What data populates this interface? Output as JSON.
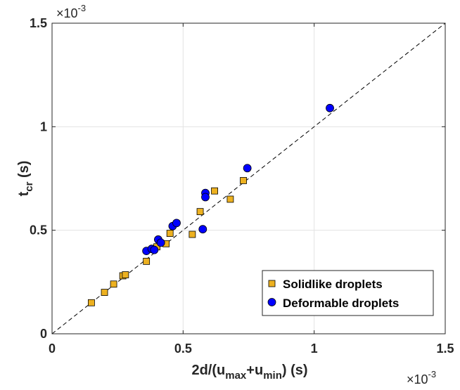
{
  "chart_data": {
    "type": "scatter",
    "xlabel": {
      "base": "2d/(u",
      "sub1": "max",
      "mid": "+u",
      "sub2": "min",
      "tail": ") (s)"
    },
    "ylabel": {
      "base": "t",
      "sub": "cr",
      "tail": " (s)"
    },
    "xlim": [
      0,
      1.5
    ],
    "ylim": [
      0,
      1.5
    ],
    "x_ticks": [
      "0",
      "0.5",
      "1",
      "1.5"
    ],
    "y_ticks": [
      "0",
      "0.5",
      "1",
      "1.5"
    ],
    "x_tick_values": [
      0,
      0.5,
      1,
      1.5
    ],
    "y_tick_values": [
      0,
      0.5,
      1,
      1.5
    ],
    "x_multiplier": {
      "base": "×10",
      "exp": "-3"
    },
    "y_multiplier": {
      "base": "×10",
      "exp": "-3"
    },
    "grid": true,
    "legend_position": "bottom-right",
    "reference_line": {
      "style": "dashed",
      "color": "#000000",
      "points": [
        [
          0,
          0
        ],
        [
          1.5,
          1.5
        ]
      ]
    },
    "series": [
      {
        "name": "Solidlike droplets",
        "marker": "square",
        "color": "#EDB120",
        "points": [
          [
            0.15,
            0.15
          ],
          [
            0.2,
            0.2
          ],
          [
            0.235,
            0.24
          ],
          [
            0.27,
            0.28
          ],
          [
            0.28,
            0.285
          ],
          [
            0.36,
            0.35
          ],
          [
            0.4,
            0.42
          ],
          [
            0.435,
            0.435
          ],
          [
            0.45,
            0.485
          ],
          [
            0.535,
            0.48
          ],
          [
            0.565,
            0.59
          ],
          [
            0.62,
            0.69
          ],
          [
            0.68,
            0.65
          ],
          [
            0.73,
            0.74
          ]
        ]
      },
      {
        "name": "Deformable droplets",
        "marker": "circle",
        "color": "#0000FF",
        "points": [
          [
            0.36,
            0.4
          ],
          [
            0.38,
            0.41
          ],
          [
            0.39,
            0.405
          ],
          [
            0.405,
            0.455
          ],
          [
            0.415,
            0.44
          ],
          [
            0.46,
            0.52
          ],
          [
            0.475,
            0.535
          ],
          [
            0.575,
            0.505
          ],
          [
            0.585,
            0.68
          ],
          [
            0.585,
            0.66
          ],
          [
            0.745,
            0.8
          ],
          [
            1.06,
            1.09
          ]
        ]
      }
    ]
  }
}
